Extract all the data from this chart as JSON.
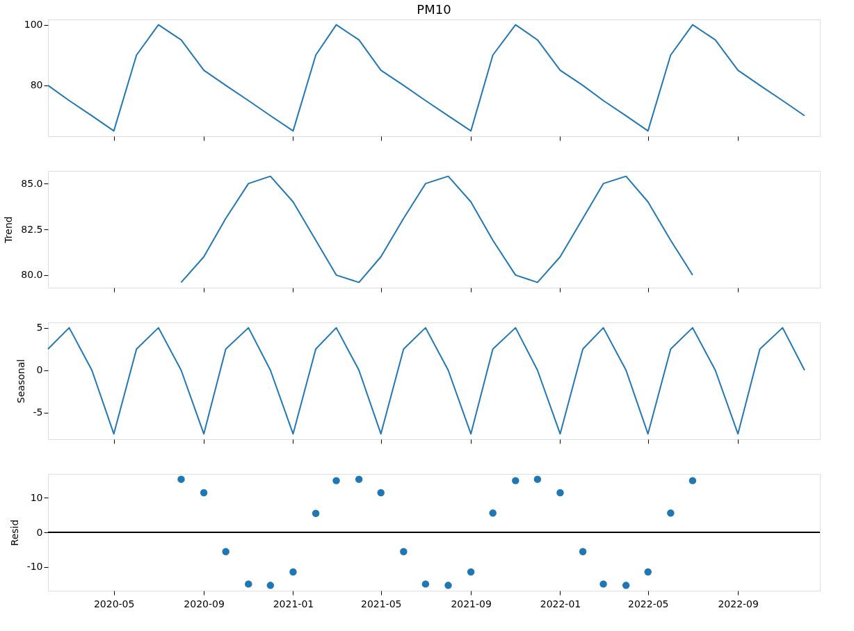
{
  "chart_data": [
    {
      "type": "line",
      "title": "PM10",
      "x": [
        "2020-02",
        "2020-03",
        "2020-04",
        "2020-05",
        "2020-06",
        "2020-07",
        "2020-08",
        "2020-09",
        "2020-10",
        "2020-11",
        "2020-12",
        "2021-01",
        "2021-02",
        "2021-03",
        "2021-04",
        "2021-05",
        "2021-06",
        "2021-07",
        "2021-08",
        "2021-09",
        "2021-10",
        "2021-11",
        "2021-12",
        "2022-01",
        "2022-02",
        "2022-03",
        "2022-04",
        "2022-05",
        "2022-06",
        "2022-07",
        "2022-08",
        "2022-09",
        "2022-10",
        "2022-11",
        "2022-12"
      ],
      "series": [
        {
          "color": "#1f77b4",
          "values": [
            80,
            75,
            70,
            65,
            90,
            100,
            95,
            85,
            80,
            75,
            70,
            65,
            90,
            100,
            95,
            85,
            80,
            75,
            70,
            65,
            90,
            100,
            95,
            85,
            80,
            75,
            70,
            65,
            90,
            100,
            95,
            85,
            80,
            75,
            70
          ]
        }
      ],
      "xlim": [
        "2020-02",
        "2022-12-22"
      ],
      "xticks": [
        "2020-05",
        "2020-09",
        "2021-01",
        "2021-05",
        "2021-09",
        "2022-01",
        "2022-05",
        "2022-09"
      ],
      "ylim": [
        63.25,
        101.75
      ],
      "yticks": [
        80,
        100
      ],
      "tick_labels": "y",
      "grid": false
    },
    {
      "type": "line",
      "ylabel": "Trend",
      "x": [
        "2020-08",
        "2020-09",
        "2020-10",
        "2020-11",
        "2020-12",
        "2021-01",
        "2021-02",
        "2021-03",
        "2021-04",
        "2021-05",
        "2021-06",
        "2021-07",
        "2021-08",
        "2021-09",
        "2021-10",
        "2021-11",
        "2021-12",
        "2022-01",
        "2022-02",
        "2022-03",
        "2022-04",
        "2022-05",
        "2022-06",
        "2022-07"
      ],
      "series": [
        {
          "color": "#1f77b4",
          "values": [
            79.6,
            81.0,
            83.1,
            85.0,
            85.4,
            84.0,
            81.9,
            80.0,
            79.6,
            81.0,
            83.1,
            85.0,
            85.4,
            84.0,
            81.9,
            80.0,
            79.6,
            81.0,
            83.1,
            85.0,
            85.4,
            84.0,
            81.9,
            80.0
          ]
        }
      ],
      "xlim": [
        "2020-02",
        "2022-12-22"
      ],
      "xticks": [
        "2020-05",
        "2020-09",
        "2021-01",
        "2021-05",
        "2021-09",
        "2022-01",
        "2022-05",
        "2022-09"
      ],
      "ylim": [
        79.31,
        85.69
      ],
      "yticks": [
        {
          "value": 80,
          "label": "80.0"
        },
        {
          "value": 82.5,
          "label": "82.5"
        },
        {
          "value": 85,
          "label": "85.0"
        }
      ],
      "tick_labels": "y",
      "grid": false
    },
    {
      "type": "line",
      "ylabel": "Seasonal",
      "x": [
        "2020-02",
        "2020-03",
        "2020-04",
        "2020-05",
        "2020-06",
        "2020-07",
        "2020-08",
        "2020-09",
        "2020-10",
        "2020-11",
        "2020-12",
        "2021-01",
        "2021-02",
        "2021-03",
        "2021-04",
        "2021-05",
        "2021-06",
        "2021-07",
        "2021-08",
        "2021-09",
        "2021-10",
        "2021-11",
        "2021-12",
        "2022-01",
        "2022-02",
        "2022-03",
        "2022-04",
        "2022-05",
        "2022-06",
        "2022-07",
        "2022-08",
        "2022-09",
        "2022-10",
        "2022-11",
        "2022-12"
      ],
      "series": [
        {
          "color": "#1f77b4",
          "values": [
            2.5,
            5,
            0,
            -7.5,
            2.5,
            5,
            0,
            -7.5,
            2.5,
            5,
            0,
            -7.5,
            2.5,
            5,
            0,
            -7.5,
            2.5,
            5,
            0,
            -7.5,
            2.5,
            5,
            0,
            -7.5,
            2.5,
            5,
            0,
            -7.5,
            2.5,
            5,
            0,
            -7.5,
            2.5,
            5,
            0
          ]
        }
      ],
      "xlim": [
        "2020-02",
        "2022-12-22"
      ],
      "xticks": [
        "2020-05",
        "2020-09",
        "2021-01",
        "2021-05",
        "2021-09",
        "2022-01",
        "2022-05",
        "2022-09"
      ],
      "ylim": [
        -8.125,
        5.625
      ],
      "yticks": [
        -5,
        0,
        5
      ],
      "tick_labels": "y",
      "grid": false
    },
    {
      "type": "scatter",
      "ylabel": "Resid",
      "x": [
        "2020-08",
        "2020-09",
        "2020-10",
        "2020-11",
        "2020-12",
        "2021-01",
        "2021-02",
        "2021-03",
        "2021-04",
        "2021-05",
        "2021-06",
        "2021-07",
        "2021-08",
        "2021-09",
        "2021-10",
        "2021-11",
        "2021-12",
        "2022-01",
        "2022-02",
        "2022-03",
        "2022-04",
        "2022-05",
        "2022-06",
        "2022-07"
      ],
      "series": [
        {
          "color": "#1f77b4",
          "values": [
            15.4,
            11.5,
            -5.6,
            -15,
            -15.4,
            -11.5,
            5.5,
            15,
            15.4,
            11.5,
            -5.6,
            -15,
            -15.4,
            -11.5,
            5.6,
            15,
            15.4,
            11.5,
            -5.6,
            -15,
            -15.4,
            -11.5,
            5.6,
            15
          ]
        }
      ],
      "xlim": [
        "2020-02",
        "2022-12-22"
      ],
      "xticks": [
        "2020-05",
        "2020-09",
        "2021-01",
        "2021-05",
        "2021-09",
        "2022-01",
        "2022-05",
        "2022-09"
      ],
      "ylim": [
        -16.94,
        16.94
      ],
      "yticks": [
        -10,
        0,
        10
      ],
      "marker": "circle",
      "ref_lines": [
        {
          "axis": "y",
          "value": 0,
          "color": "#000000"
        }
      ],
      "grid": false
    }
  ]
}
